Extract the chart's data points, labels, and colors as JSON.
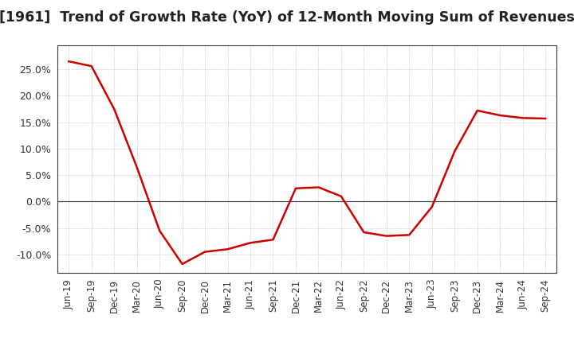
{
  "title": "[1961]  Trend of Growth Rate (YoY) of 12-Month Moving Sum of Revenues",
  "title_fontsize": 12.5,
  "line_color": "#cc0000",
  "background_color": "#ffffff",
  "grid_color": "#aaaaaa",
  "tick_label_color": "#333333",
  "dates": [
    "Jun-19",
    "Sep-19",
    "Dec-19",
    "Mar-20",
    "Jun-20",
    "Sep-20",
    "Dec-20",
    "Mar-21",
    "Jun-21",
    "Sep-21",
    "Dec-21",
    "Mar-22",
    "Jun-22",
    "Sep-22",
    "Dec-22",
    "Mar-23",
    "Jun-23",
    "Sep-23",
    "Dec-23",
    "Mar-24",
    "Jun-24",
    "Sep-24"
  ],
  "values": [
    0.265,
    0.256,
    0.175,
    0.065,
    -0.055,
    -0.118,
    -0.095,
    -0.09,
    -0.078,
    -0.072,
    0.025,
    0.027,
    0.01,
    -0.058,
    -0.065,
    -0.063,
    -0.01,
    0.095,
    0.172,
    0.163,
    0.158,
    0.157
  ],
  "ylim": [
    -0.135,
    0.295
  ],
  "yticks": [
    -0.1,
    -0.05,
    0.0,
    0.05,
    0.1,
    0.15,
    0.2,
    0.25
  ],
  "ytick_labels": [
    "-10.0%",
    "-5.0%",
    "0.0%",
    "5.0%",
    "10.0%",
    "15.0%",
    "20.0%",
    "25.0%"
  ]
}
